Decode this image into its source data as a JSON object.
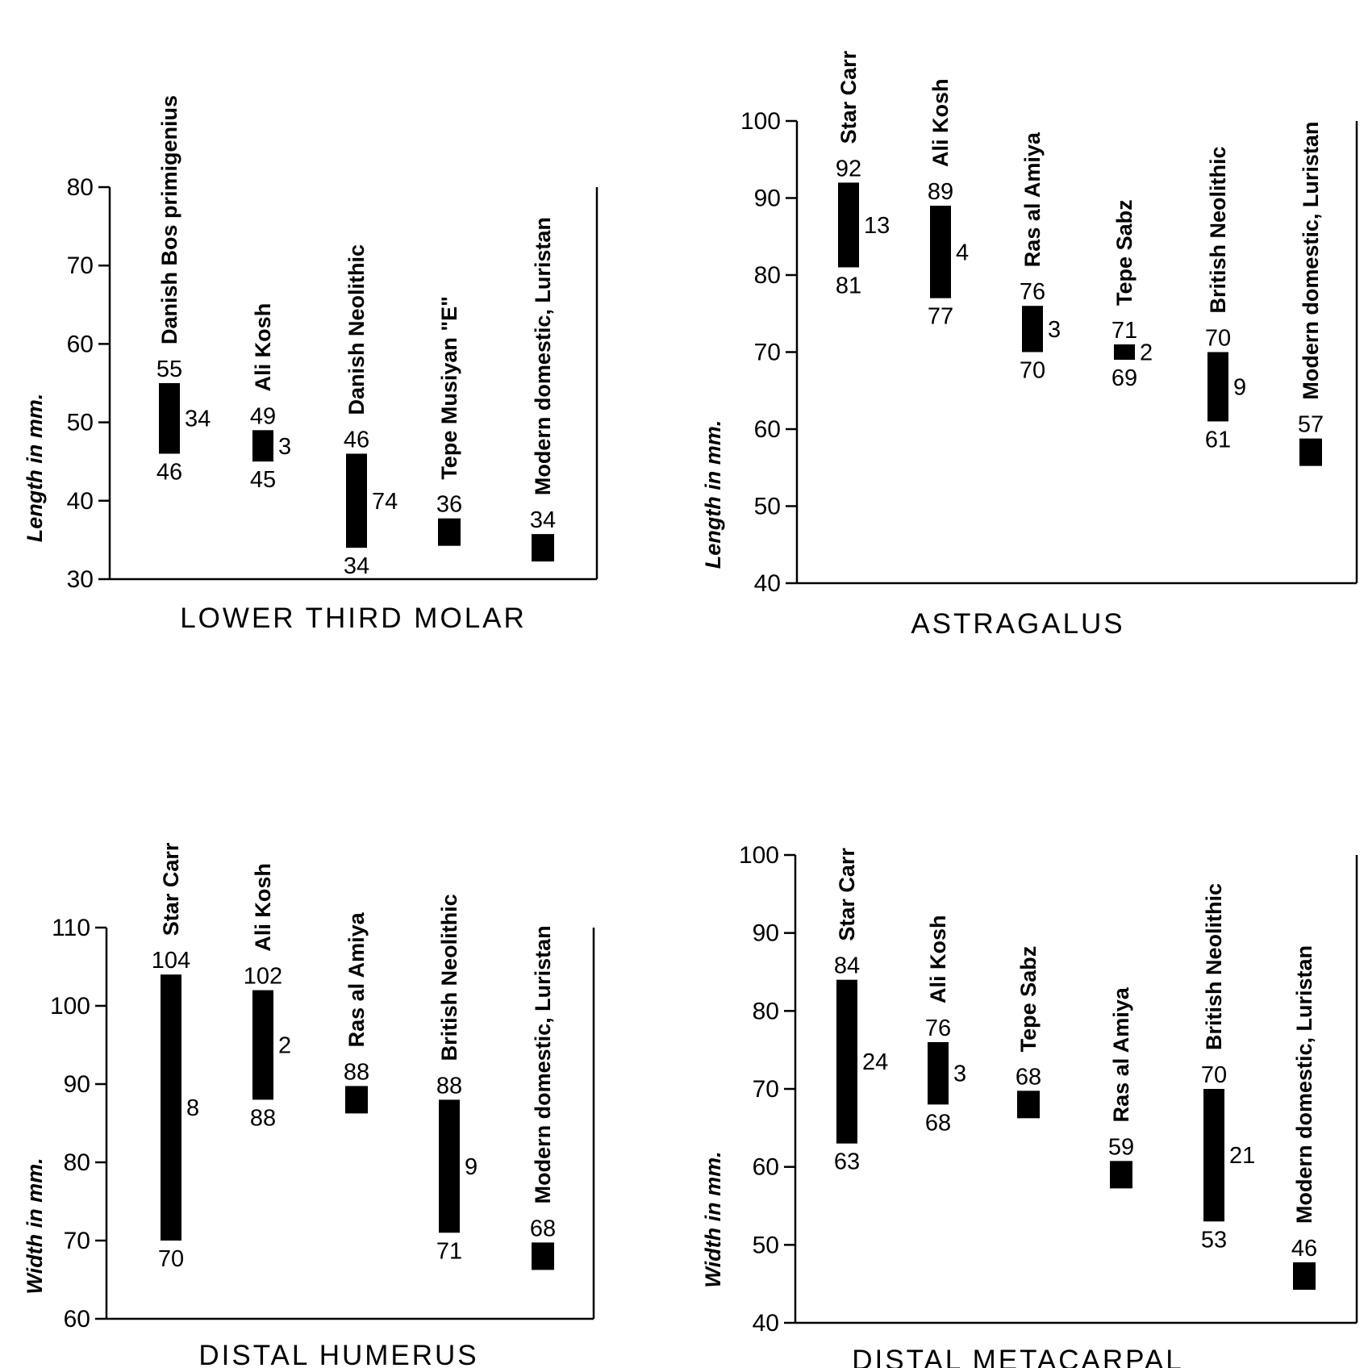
{
  "chart_data": [
    {
      "type": "range-bar",
      "title": "LOWER  THIRD  MOLAR",
      "ylabel": "Length in mm.",
      "ylim": [
        30,
        80
      ],
      "yticks": [
        30,
        40,
        50,
        60,
        70,
        80
      ],
      "categories": [
        "Danish Bos primigenius",
        "Ali Kosh",
        "Danish Neolithic",
        "Tepe Musiyan \"E\"",
        "Modern domestic, Luristan"
      ],
      "series": [
        {
          "max": 55,
          "min": 46,
          "max_label": "55",
          "min_label": "46",
          "n": "34"
        },
        {
          "max": 49,
          "min": 45,
          "max_label": "49",
          "min_label": "45",
          "n": "3"
        },
        {
          "max": 46,
          "min": 34,
          "max_label": "46",
          "min_label": "34",
          "n": "74"
        },
        {
          "max": 36,
          "min": 36,
          "max_label": "36",
          "min_label": "",
          "n": ""
        },
        {
          "max": 34,
          "min": 34,
          "max_label": "34",
          "min_label": "",
          "n": ""
        }
      ]
    },
    {
      "type": "range-bar",
      "title": "ASTRAGALUS",
      "ylabel": "Length in mm.",
      "ylim": [
        40,
        100
      ],
      "yticks": [
        40,
        50,
        60,
        70,
        80,
        90,
        100
      ],
      "categories": [
        "Star Carr",
        "Ali Kosh",
        "Ras al Amiya",
        "Tepe Sabz",
        "British Neolithic",
        "Modern domestic, Luristan"
      ],
      "series": [
        {
          "max": 92,
          "min": 81,
          "max_label": "92",
          "min_label": "81",
          "n": "13"
        },
        {
          "max": 89,
          "min": 77,
          "max_label": "89",
          "min_label": "77",
          "n": "4"
        },
        {
          "max": 76,
          "min": 70,
          "max_label": "76",
          "min_label": "70",
          "n": "3"
        },
        {
          "max": 71,
          "min": 69,
          "max_label": "71",
          "min_label": "69",
          "n": "2"
        },
        {
          "max": 70,
          "min": 61,
          "max_label": "70",
          "min_label": "61",
          "n": "9"
        },
        {
          "max": 57,
          "min": 57,
          "max_label": "57",
          "min_label": "",
          "n": ""
        }
      ]
    },
    {
      "type": "range-bar",
      "title": "DISTAL  HUMERUS",
      "ylabel": "Width in mm.",
      "ylim": [
        60,
        110
      ],
      "yticks": [
        60,
        70,
        80,
        90,
        100,
        110
      ],
      "categories": [
        "Star Carr",
        "Ali Kosh",
        "Ras al Amiya",
        "British Neolithic",
        "Modern domestic, Luristan"
      ],
      "series": [
        {
          "max": 104,
          "min": 70,
          "max_label": "104",
          "min_label": "70",
          "n": "8"
        },
        {
          "max": 102,
          "min": 88,
          "max_label": "102",
          "min_label": "88",
          "n": "2"
        },
        {
          "max": 88,
          "min": 88,
          "max_label": "88",
          "min_label": "",
          "n": ""
        },
        {
          "max": 88,
          "min": 71,
          "max_label": "88",
          "min_label": "71",
          "n": "9"
        },
        {
          "max": 68,
          "min": 68,
          "max_label": "68",
          "min_label": "",
          "n": ""
        }
      ]
    },
    {
      "type": "range-bar",
      "title": "DISTAL  METACARPAL",
      "ylabel": "Width in mm.",
      "ylim": [
        40,
        100
      ],
      "yticks": [
        40,
        50,
        60,
        70,
        80,
        90,
        100
      ],
      "categories": [
        "Star Carr",
        "Ali Kosh",
        "Tepe Sabz",
        "Ras al Amiya",
        "British Neolithic",
        "Modern domestic, Luristan"
      ],
      "series": [
        {
          "max": 84,
          "min": 63,
          "max_label": "84",
          "min_label": "63",
          "n": "24"
        },
        {
          "max": 76,
          "min": 68,
          "max_label": "76",
          "min_label": "68",
          "n": "3"
        },
        {
          "max": 68,
          "min": 68,
          "max_label": "68",
          "min_label": "",
          "n": ""
        },
        {
          "max": 59,
          "min": 59,
          "max_label": "59",
          "min_label": "",
          "n": ""
        },
        {
          "max": 70,
          "min": 53,
          "max_label": "70",
          "min_label": "53",
          "n": "21"
        },
        {
          "max": 46,
          "min": 46,
          "max_label": "46",
          "min_label": "",
          "n": ""
        }
      ]
    }
  ]
}
